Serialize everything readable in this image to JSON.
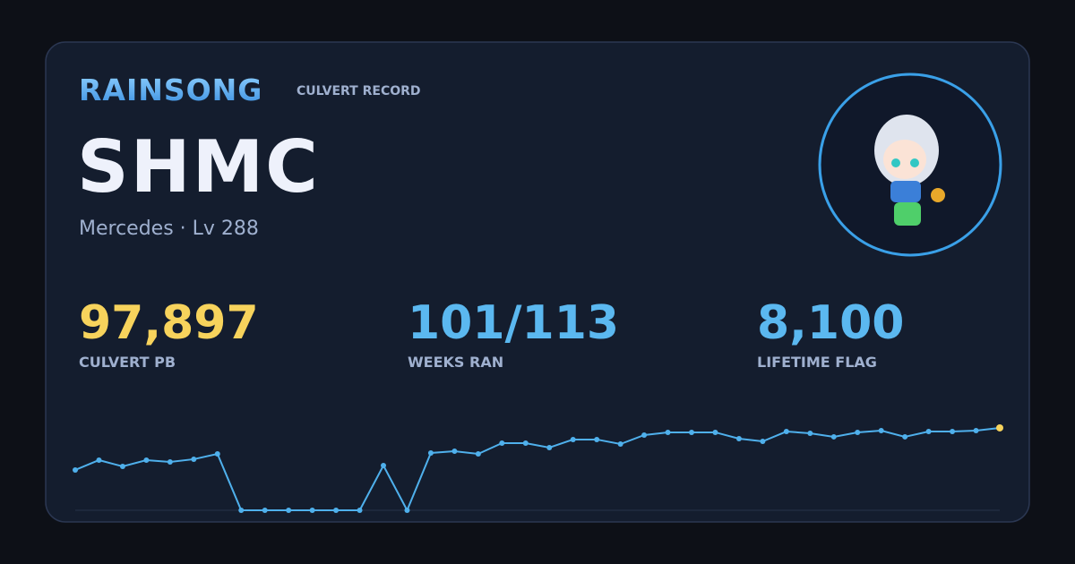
{
  "header": {
    "brand": "RAINSONG",
    "subtitle": "CULVERT RECORD"
  },
  "name": "SHMC",
  "info": "Mercedes · Lv 288",
  "stats": [
    {
      "value": "97,897",
      "label": "CULVERT PB",
      "color": "#f7d35c"
    },
    {
      "value": "101/113",
      "label": "WEEKS RAN",
      "color": "#5bb8f0"
    },
    {
      "value": "8,100",
      "label": "LIFETIME FLAG",
      "color": "#5bb8f0"
    }
  ],
  "chart_data": {
    "type": "line",
    "color": "#4fb0ec",
    "highlight_color": "#f7d35c",
    "ylim": [
      0,
      100000
    ],
    "values": [
      47900,
      59600,
      52100,
      59600,
      57500,
      60700,
      67000,
      0,
      0,
      0,
      0,
      0,
      0,
      53200,
      0,
      68100,
      70200,
      67000,
      79800,
      79800,
      74500,
      84100,
      84100,
      78700,
      89400,
      92600,
      92600,
      92600,
      85100,
      81900,
      93600,
      91500,
      87300,
      92600,
      94700,
      87300,
      93600,
      93600,
      94700,
      97897
    ]
  }
}
